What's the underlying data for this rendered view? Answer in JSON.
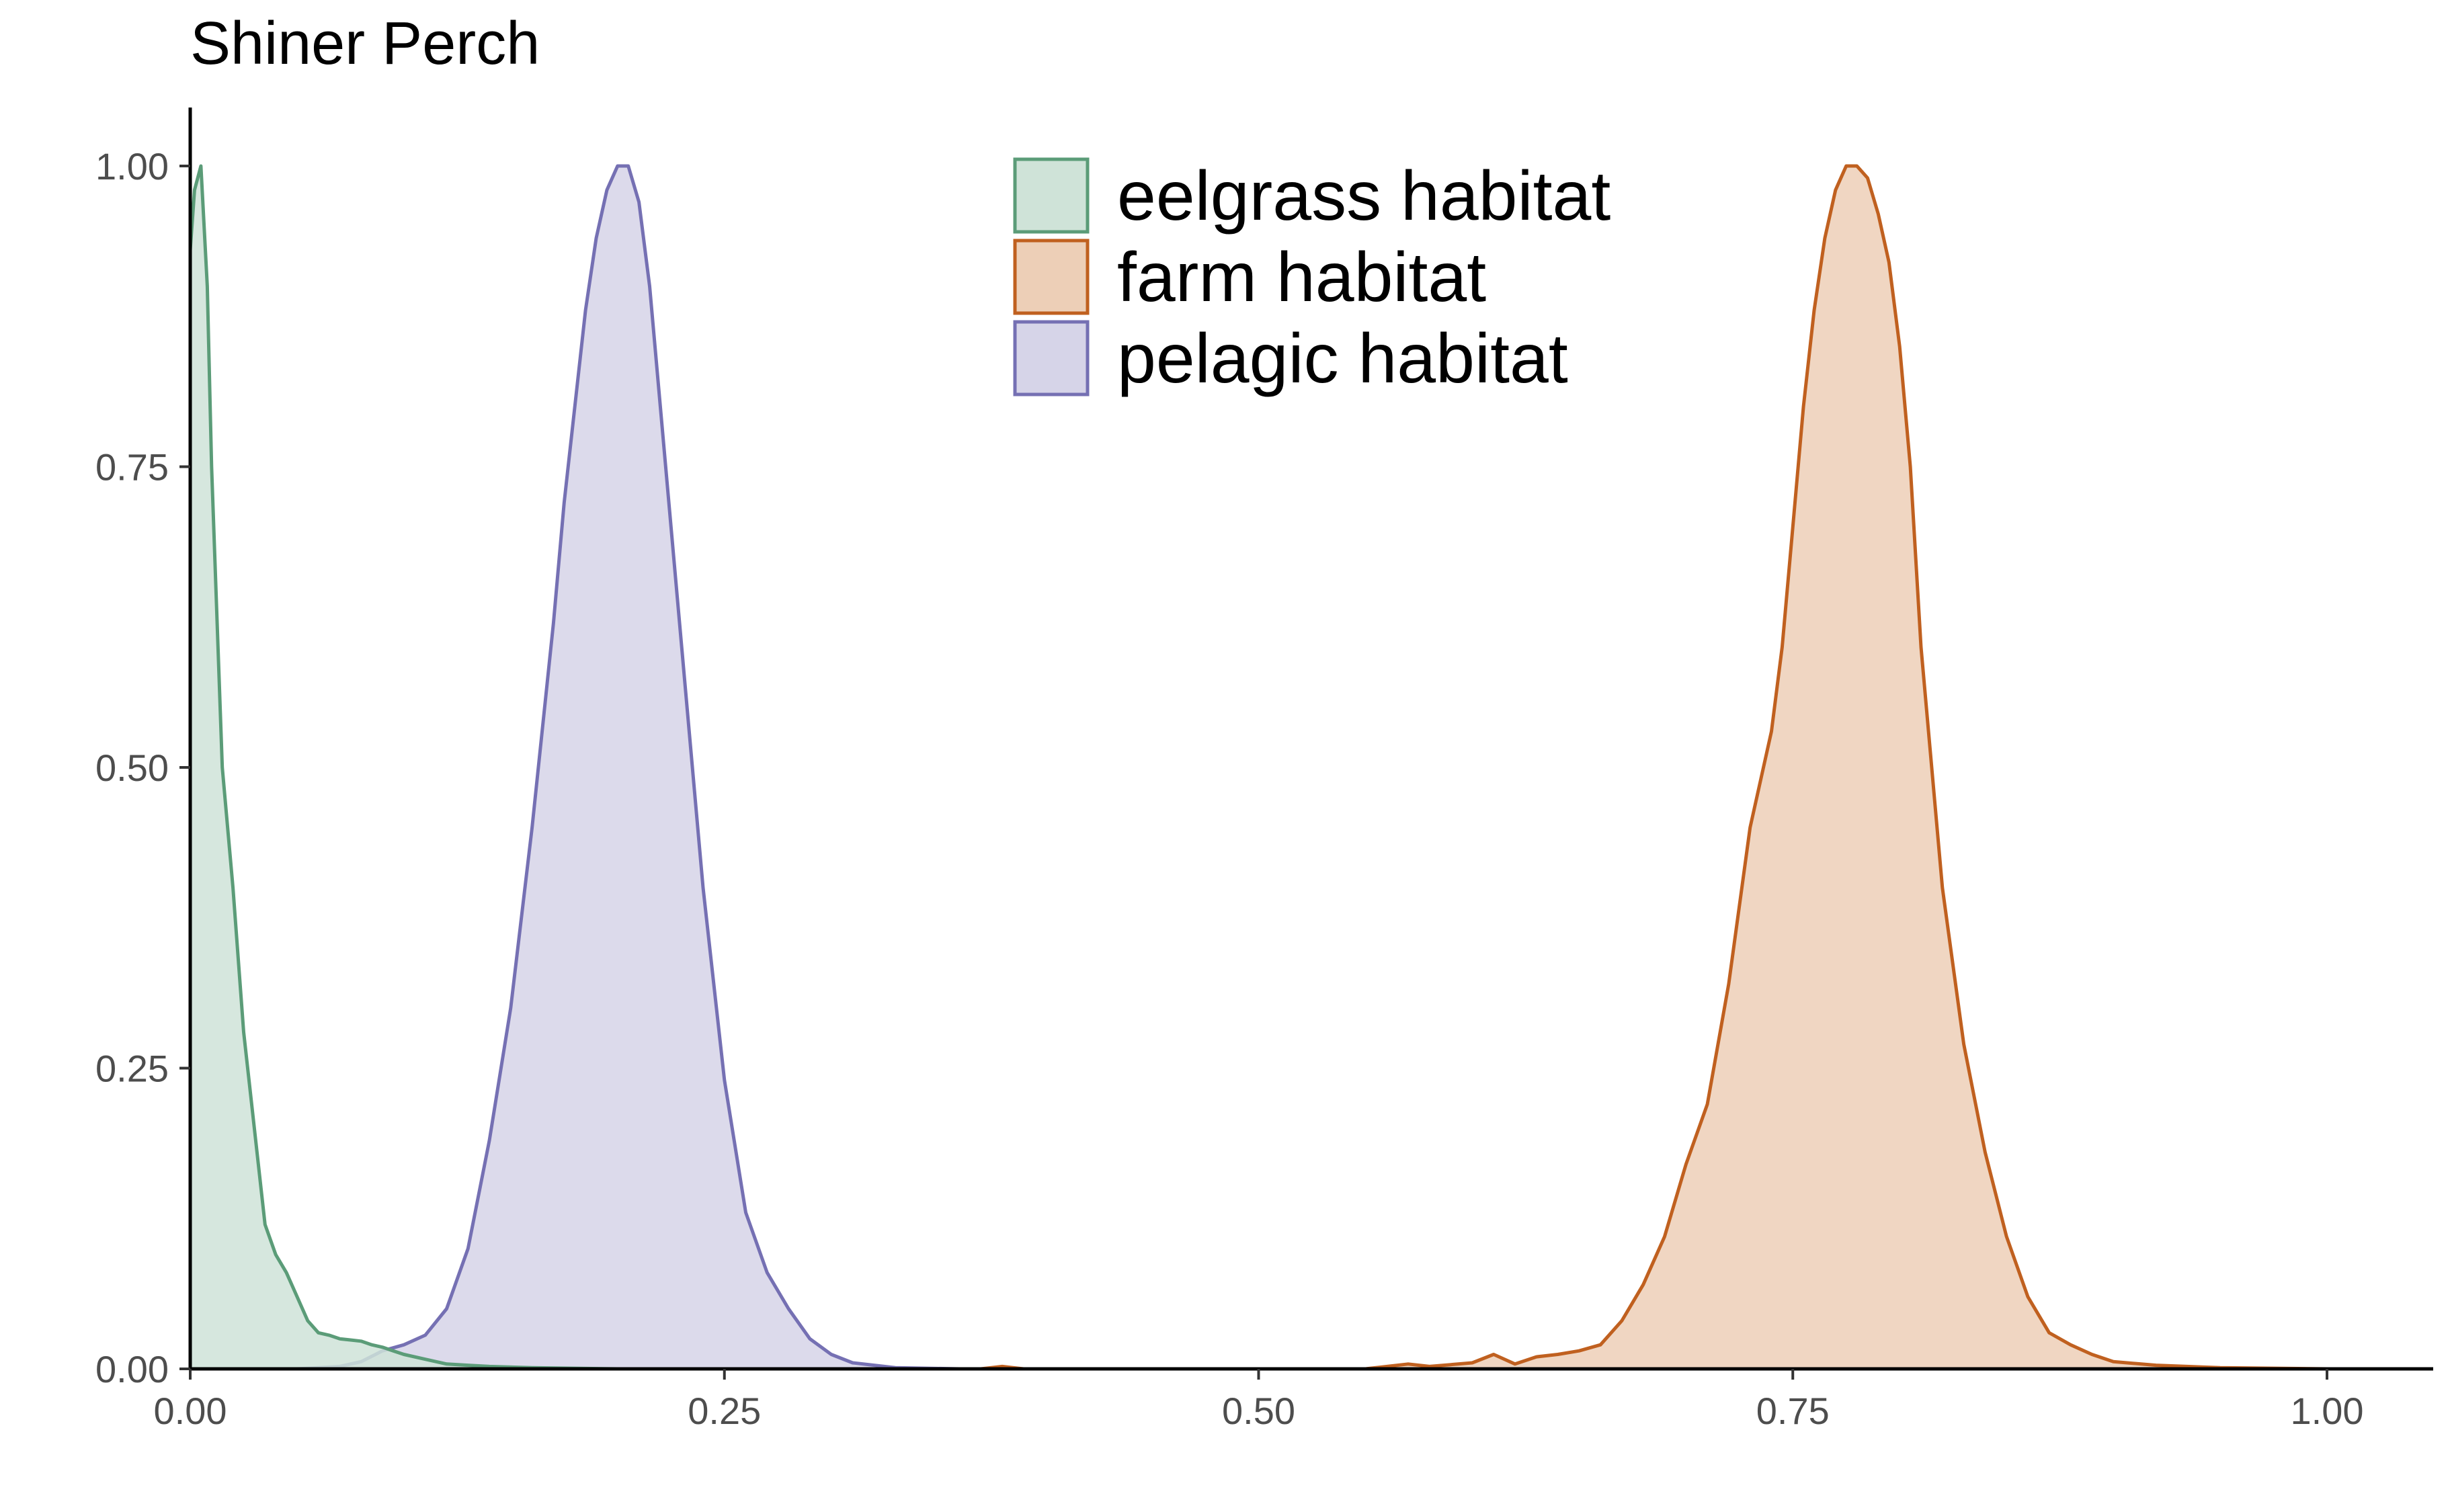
{
  "chart_data": {
    "type": "area",
    "title": "Shiner Perch",
    "xlabel": "",
    "ylabel": "",
    "xlim": [
      0,
      1.05
    ],
    "ylim": [
      0,
      1.05
    ],
    "x_ticks": [
      0,
      0.25,
      0.5,
      0.75,
      1.0
    ],
    "x_tick_labels": [
      "0.00",
      "0.25",
      "0.50",
      "0.75",
      "1.00"
    ],
    "y_ticks": [
      0,
      0.25,
      0.5,
      0.75,
      1.0
    ],
    "y_tick_labels": [
      "0.00",
      "0.25",
      "0.50",
      "0.75",
      "1.00"
    ],
    "grid": false,
    "legend_position": "top-center",
    "series": [
      {
        "name": "eelgrass habitat",
        "line_color": "#5b9c78",
        "fill_color": "#cfe3d8",
        "x": [
          0,
          0.002,
          0.005,
          0.008,
          0.01,
          0.015,
          0.02,
          0.025,
          0.03,
          0.035,
          0.04,
          0.045,
          0.05,
          0.055,
          0.06,
          0.065,
          0.07,
          0.075,
          0.08,
          0.085,
          0.09,
          0.095,
          0.1,
          0.11,
          0.12,
          0.13,
          0.14,
          0.16,
          0.2
        ],
        "y": [
          0.93,
          0.98,
          1.0,
          0.9,
          0.75,
          0.5,
          0.4,
          0.28,
          0.2,
          0.12,
          0.095,
          0.08,
          0.06,
          0.04,
          0.03,
          0.028,
          0.025,
          0.024,
          0.023,
          0.02,
          0.018,
          0.015,
          0.012,
          0.008,
          0.004,
          0.003,
          0.002,
          0.001,
          0
        ]
      },
      {
        "name": "farm habitat",
        "line_color": "#c0601f",
        "fill_color": "#edcfb7",
        "x": [
          0.3,
          0.37,
          0.38,
          0.39,
          0.55,
          0.57,
          0.58,
          0.6,
          0.61,
          0.62,
          0.63,
          0.64,
          0.65,
          0.66,
          0.67,
          0.68,
          0.69,
          0.7,
          0.71,
          0.72,
          0.73,
          0.74,
          0.745,
          0.75,
          0.755,
          0.76,
          0.765,
          0.77,
          0.775,
          0.78,
          0.785,
          0.79,
          0.795,
          0.8,
          0.805,
          0.81,
          0.815,
          0.82,
          0.83,
          0.84,
          0.85,
          0.86,
          0.87,
          0.88,
          0.89,
          0.9,
          0.92,
          0.95,
          1.0
        ],
        "y": [
          0,
          0,
          0.002,
          0,
          0,
          0.004,
          0.002,
          0.005,
          0.012,
          0.004,
          0.01,
          0.012,
          0.015,
          0.02,
          0.04,
          0.07,
          0.11,
          0.17,
          0.22,
          0.32,
          0.45,
          0.53,
          0.6,
          0.7,
          0.8,
          0.88,
          0.94,
          0.98,
          1.0,
          1.0,
          0.99,
          0.96,
          0.92,
          0.85,
          0.75,
          0.6,
          0.5,
          0.4,
          0.27,
          0.18,
          0.11,
          0.06,
          0.03,
          0.02,
          0.012,
          0.006,
          0.003,
          0.001,
          0
        ]
      },
      {
        "name": "pelagic habitat",
        "line_color": "#7570b3",
        "fill_color": "#d6d4e8",
        "x": [
          0.05,
          0.07,
          0.08,
          0.09,
          0.1,
          0.11,
          0.12,
          0.13,
          0.14,
          0.15,
          0.16,
          0.17,
          0.175,
          0.18,
          0.185,
          0.19,
          0.195,
          0.2,
          0.205,
          0.21,
          0.215,
          0.22,
          0.225,
          0.23,
          0.235,
          0.24,
          0.245,
          0.25,
          0.26,
          0.27,
          0.28,
          0.29,
          0.3,
          0.31,
          0.33,
          0.36
        ],
        "y": [
          0,
          0.002,
          0.006,
          0.015,
          0.02,
          0.028,
          0.05,
          0.1,
          0.19,
          0.3,
          0.45,
          0.62,
          0.72,
          0.8,
          0.88,
          0.94,
          0.98,
          1.0,
          1.0,
          0.97,
          0.9,
          0.8,
          0.7,
          0.6,
          0.5,
          0.4,
          0.32,
          0.24,
          0.13,
          0.08,
          0.05,
          0.025,
          0.012,
          0.005,
          0.001,
          0
        ]
      }
    ]
  }
}
